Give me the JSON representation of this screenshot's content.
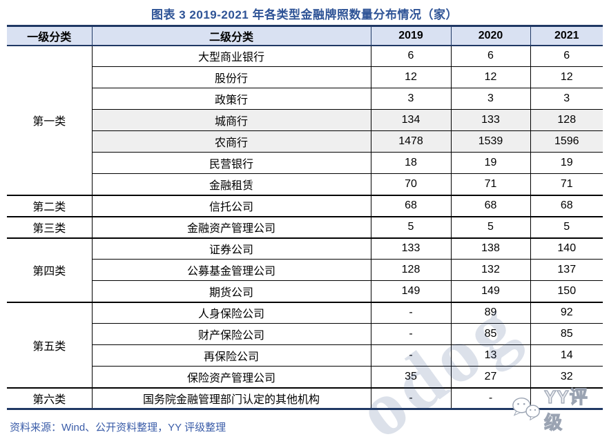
{
  "title": "图表 3  2019-2021 年各类型金融牌照数量分布情况（家）",
  "source_note": "资料来源：Wind、公开资料整理，YY 评级整理",
  "watermark": {
    "diagonal_text": "odog",
    "logo_text": "YY评级"
  },
  "colors": {
    "title_blue": "#2E5396",
    "header_bg": "#d9e1f2",
    "navy_border": "#1F3864",
    "shaded_row_bg": "#efefef",
    "source_blue": "#3A5CA8"
  },
  "table": {
    "headers": [
      "一级分类",
      "二级分类",
      "2019",
      "2020",
      "2021"
    ],
    "groups": [
      {
        "name": "第一类",
        "rows": [
          {
            "label": "大型商业银行",
            "v2019": "6",
            "v2020": "6",
            "v2021": "6",
            "shaded": false
          },
          {
            "label": "股份行",
            "v2019": "12",
            "v2020": "12",
            "v2021": "12",
            "shaded": false
          },
          {
            "label": "政策行",
            "v2019": "3",
            "v2020": "3",
            "v2021": "3",
            "shaded": false
          },
          {
            "label": "城商行",
            "v2019": "134",
            "v2020": "133",
            "v2021": "128",
            "shaded": true
          },
          {
            "label": "农商行",
            "v2019": "1478",
            "v2020": "1539",
            "v2021": "1596",
            "shaded": true
          },
          {
            "label": "民营银行",
            "v2019": "18",
            "v2020": "19",
            "v2021": "19",
            "shaded": false
          },
          {
            "label": "金融租赁",
            "v2019": "70",
            "v2020": "71",
            "v2021": "71",
            "shaded": false
          }
        ]
      },
      {
        "name": "第二类",
        "rows": [
          {
            "label": "信托公司",
            "v2019": "68",
            "v2020": "68",
            "v2021": "68",
            "shaded": false
          }
        ]
      },
      {
        "name": "第三类",
        "rows": [
          {
            "label": "金融资产管理公司",
            "v2019": "5",
            "v2020": "5",
            "v2021": "5",
            "shaded": false
          }
        ]
      },
      {
        "name": "第四类",
        "rows": [
          {
            "label": "证券公司",
            "v2019": "133",
            "v2020": "138",
            "v2021": "140",
            "shaded": false
          },
          {
            "label": "公募基金管理公司",
            "v2019": "128",
            "v2020": "132",
            "v2021": "137",
            "shaded": false
          },
          {
            "label": "期货公司",
            "v2019": "149",
            "v2020": "149",
            "v2021": "150",
            "shaded": false
          }
        ]
      },
      {
        "name": "第五类",
        "rows": [
          {
            "label": "人身保险公司",
            "v2019": "-",
            "v2020": "89",
            "v2021": "92",
            "shaded": false
          },
          {
            "label": "财产保险公司",
            "v2019": "-",
            "v2020": "85",
            "v2021": "85",
            "shaded": false
          },
          {
            "label": "再保险公司",
            "v2019": "-",
            "v2020": "13",
            "v2021": "14",
            "shaded": false
          },
          {
            "label": "保险资产管理公司",
            "v2019": "35",
            "v2020": "27",
            "v2021": "32",
            "shaded": false
          }
        ]
      },
      {
        "name": "第六类",
        "rows": [
          {
            "label": "国务院金融管理部门认定的其他机构",
            "v2019": "-",
            "v2020": "-",
            "v2021": "",
            "shaded": false
          }
        ]
      }
    ]
  },
  "chart_data": {
    "type": "table",
    "title": "图表 3  2019-2021 年各类型金融牌照数量分布情况（家）",
    "columns": [
      "一级分类",
      "二级分类",
      "2019",
      "2020",
      "2021"
    ],
    "rows": [
      [
        "第一类",
        "大型商业银行",
        "6",
        "6",
        "6"
      ],
      [
        "第一类",
        "股份行",
        "12",
        "12",
        "12"
      ],
      [
        "第一类",
        "政策行",
        "3",
        "3",
        "3"
      ],
      [
        "第一类",
        "城商行",
        "134",
        "133",
        "128"
      ],
      [
        "第一类",
        "农商行",
        "1478",
        "1539",
        "1596"
      ],
      [
        "第一类",
        "民营银行",
        "18",
        "19",
        "19"
      ],
      [
        "第一类",
        "金融租赁",
        "70",
        "71",
        "71"
      ],
      [
        "第二类",
        "信托公司",
        "68",
        "68",
        "68"
      ],
      [
        "第三类",
        "金融资产管理公司",
        "5",
        "5",
        "5"
      ],
      [
        "第四类",
        "证券公司",
        "133",
        "138",
        "140"
      ],
      [
        "第四类",
        "公募基金管理公司",
        "128",
        "132",
        "137"
      ],
      [
        "第四类",
        "期货公司",
        "149",
        "149",
        "150"
      ],
      [
        "第五类",
        "人身保险公司",
        "-",
        "89",
        "92"
      ],
      [
        "第五类",
        "财产保险公司",
        "-",
        "85",
        "85"
      ],
      [
        "第五类",
        "再保险公司",
        "-",
        "13",
        "14"
      ],
      [
        "第五类",
        "保险资产管理公司",
        "35",
        "27",
        "32"
      ],
      [
        "第六类",
        "国务院金融管理部门认定的其他机构",
        "-",
        "-",
        ""
      ]
    ]
  }
}
